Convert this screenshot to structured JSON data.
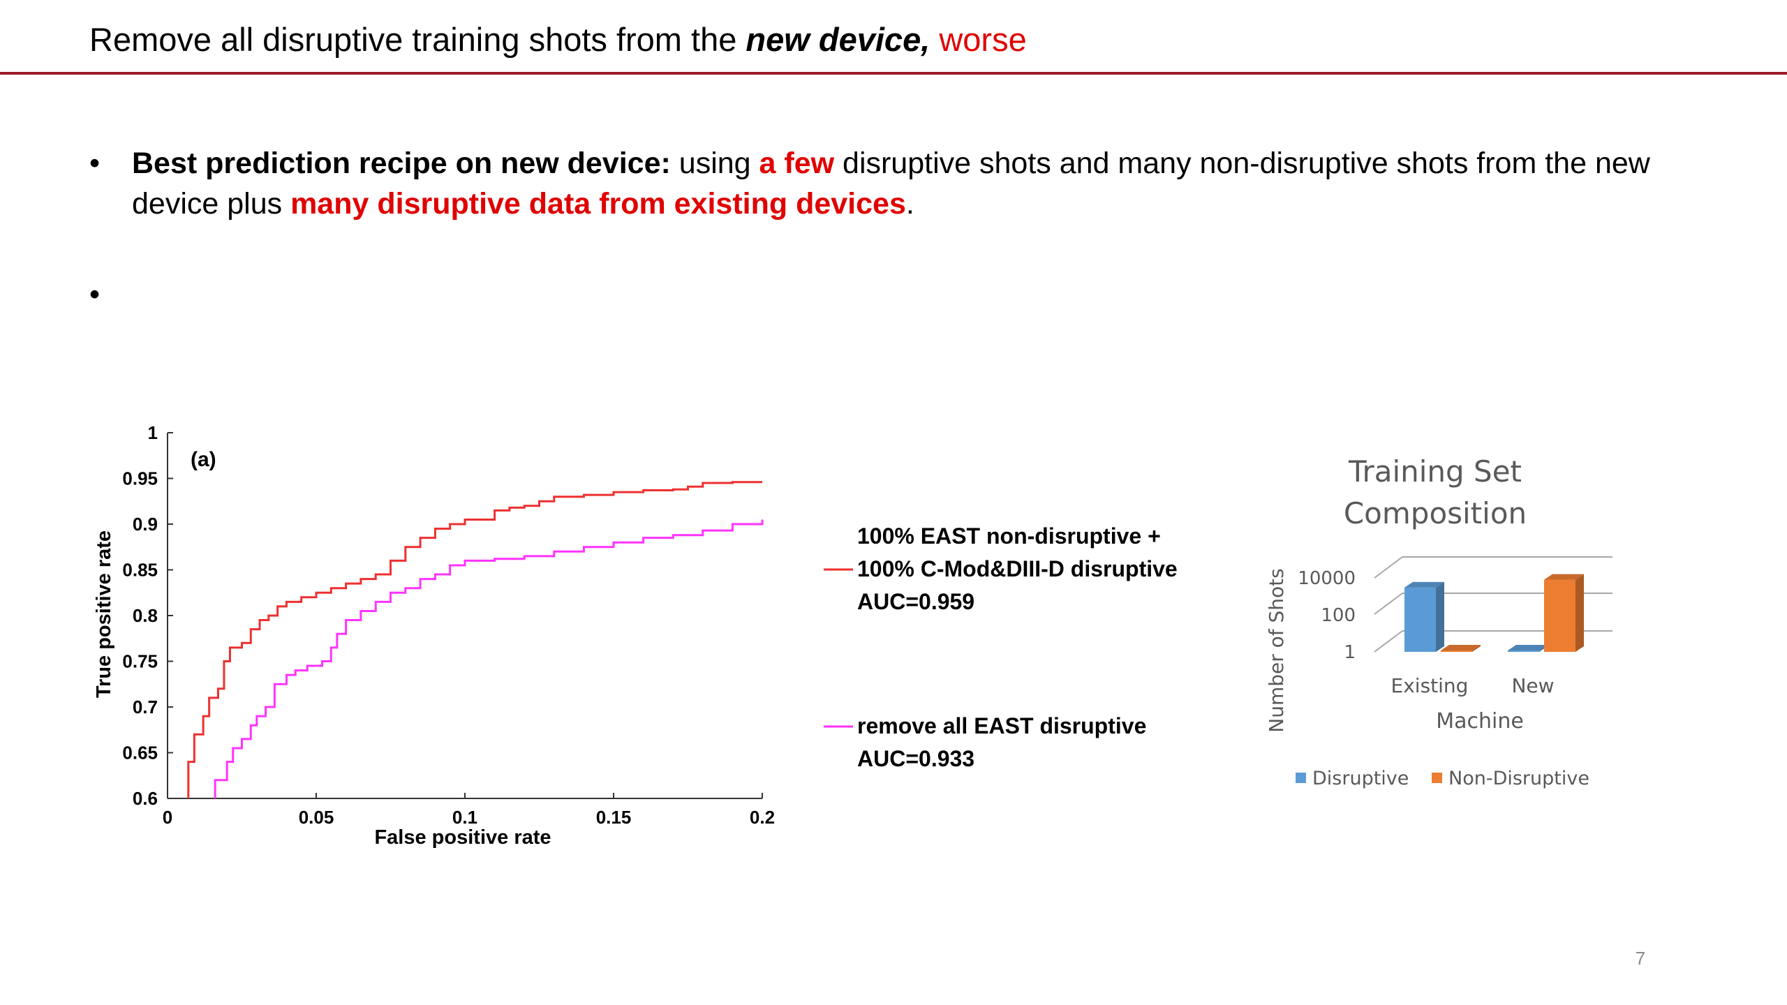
{
  "title": {
    "part1": "Remove all disruptive training shots from the ",
    "emphasis": "new device,",
    "part2": " ",
    "red": "worse"
  },
  "bullets": [
    {
      "bold": "Best prediction recipe on new device:",
      "t1": " using ",
      "red1": "a few",
      "t2": " disruptive shots and many non-disruptive shots from the new device plus ",
      "red2": "many disruptive data from existing devices",
      "t3": "."
    },
    {
      "text": ""
    }
  ],
  "roc_chart": {
    "type": "line",
    "panel_label": "(a)",
    "xlabel": "False positive rate",
    "ylabel": "True positive rate",
    "xlim": [
      0,
      0.2
    ],
    "ylim": [
      0.6,
      1
    ],
    "xticks": [
      "0",
      "0.05",
      "0.1",
      "0.15",
      "0.2"
    ],
    "yticks": [
      "0.6",
      "0.65",
      "0.7",
      "0.75",
      "0.8",
      "0.85",
      "0.9",
      "0.95",
      "1"
    ],
    "colors": {
      "red": "#ee3030",
      "magenta": "#ff33ff"
    },
    "legend": [
      {
        "lines": [
          "100% EAST non-disruptive +",
          "100% C-Mod&DIII-D disruptive",
          "AUC=0.959"
        ],
        "color": "#ee3030"
      },
      {
        "lines": [
          "remove all EAST disruptive",
          "AUC=0.933"
        ],
        "color": "#ff33ff"
      }
    ]
  },
  "chart_data": [
    {
      "type": "line",
      "title": "",
      "xlabel": "False positive rate",
      "ylabel": "True positive rate",
      "xlim": [
        0,
        0.2
      ],
      "ylim": [
        0.6,
        1
      ],
      "series": [
        {
          "name": "100% EAST non-disruptive + 100% C-Mod&DIII-D disruptive AUC=0.959",
          "x": [
            0.007,
            0.007,
            0.009,
            0.012,
            0.014,
            0.017,
            0.019,
            0.021,
            0.025,
            0.028,
            0.031,
            0.034,
            0.037,
            0.04,
            0.045,
            0.05,
            0.055,
            0.06,
            0.065,
            0.07,
            0.075,
            0.08,
            0.085,
            0.09,
            0.095,
            0.1,
            0.11,
            0.115,
            0.12,
            0.125,
            0.13,
            0.14,
            0.15,
            0.16,
            0.17,
            0.175,
            0.18,
            0.19,
            0.2
          ],
          "y": [
            0.6,
            0.64,
            0.67,
            0.69,
            0.71,
            0.72,
            0.75,
            0.765,
            0.77,
            0.785,
            0.795,
            0.8,
            0.81,
            0.815,
            0.82,
            0.825,
            0.83,
            0.835,
            0.84,
            0.845,
            0.86,
            0.875,
            0.885,
            0.895,
            0.9,
            0.905,
            0.915,
            0.918,
            0.92,
            0.925,
            0.93,
            0.932,
            0.935,
            0.937,
            0.938,
            0.941,
            0.945,
            0.946,
            0.946
          ]
        },
        {
          "name": "remove all EAST disruptive AUC=0.933",
          "x": [
            0.016,
            0.016,
            0.02,
            0.022,
            0.025,
            0.028,
            0.03,
            0.033,
            0.036,
            0.036,
            0.04,
            0.043,
            0.047,
            0.052,
            0.055,
            0.057,
            0.06,
            0.065,
            0.07,
            0.075,
            0.08,
            0.085,
            0.09,
            0.095,
            0.1,
            0.11,
            0.12,
            0.13,
            0.14,
            0.15,
            0.16,
            0.17,
            0.18,
            0.19,
            0.2
          ],
          "y": [
            0.6,
            0.62,
            0.64,
            0.655,
            0.665,
            0.68,
            0.69,
            0.7,
            0.71,
            0.725,
            0.735,
            0.74,
            0.745,
            0.75,
            0.765,
            0.78,
            0.795,
            0.805,
            0.815,
            0.825,
            0.83,
            0.84,
            0.845,
            0.855,
            0.86,
            0.862,
            0.865,
            0.87,
            0.875,
            0.88,
            0.885,
            0.888,
            0.893,
            0.9,
            0.905
          ]
        }
      ]
    },
    {
      "type": "bar",
      "title": "Training Set Composition",
      "xlabel": "Machine",
      "ylabel": "Number of Shots",
      "scale": "log",
      "yticks": [
        "1",
        "100",
        "10000"
      ],
      "categories": [
        "Existing",
        "New"
      ],
      "series": [
        {
          "name": "Disruptive",
          "values": [
            3000,
            1
          ],
          "color": "#5b9bd5"
        },
        {
          "name": "Non-Disruptive",
          "values": [
            1,
            8000
          ],
          "color": "#ed7d31"
        }
      ]
    }
  ],
  "bar_chart": {
    "title_lines": [
      "Training Set",
      "Composition"
    ],
    "ylabel": "Number of Shots",
    "xlabel": "Machine",
    "yticks": [
      "10000",
      "100",
      "1"
    ],
    "categories": [
      "Existing",
      "New"
    ],
    "legend": [
      "Disruptive",
      "Non-Disruptive"
    ],
    "colors": {
      "disruptive": "#5b9bd5",
      "non_disruptive": "#ed7d31"
    }
  },
  "page_number": "7"
}
